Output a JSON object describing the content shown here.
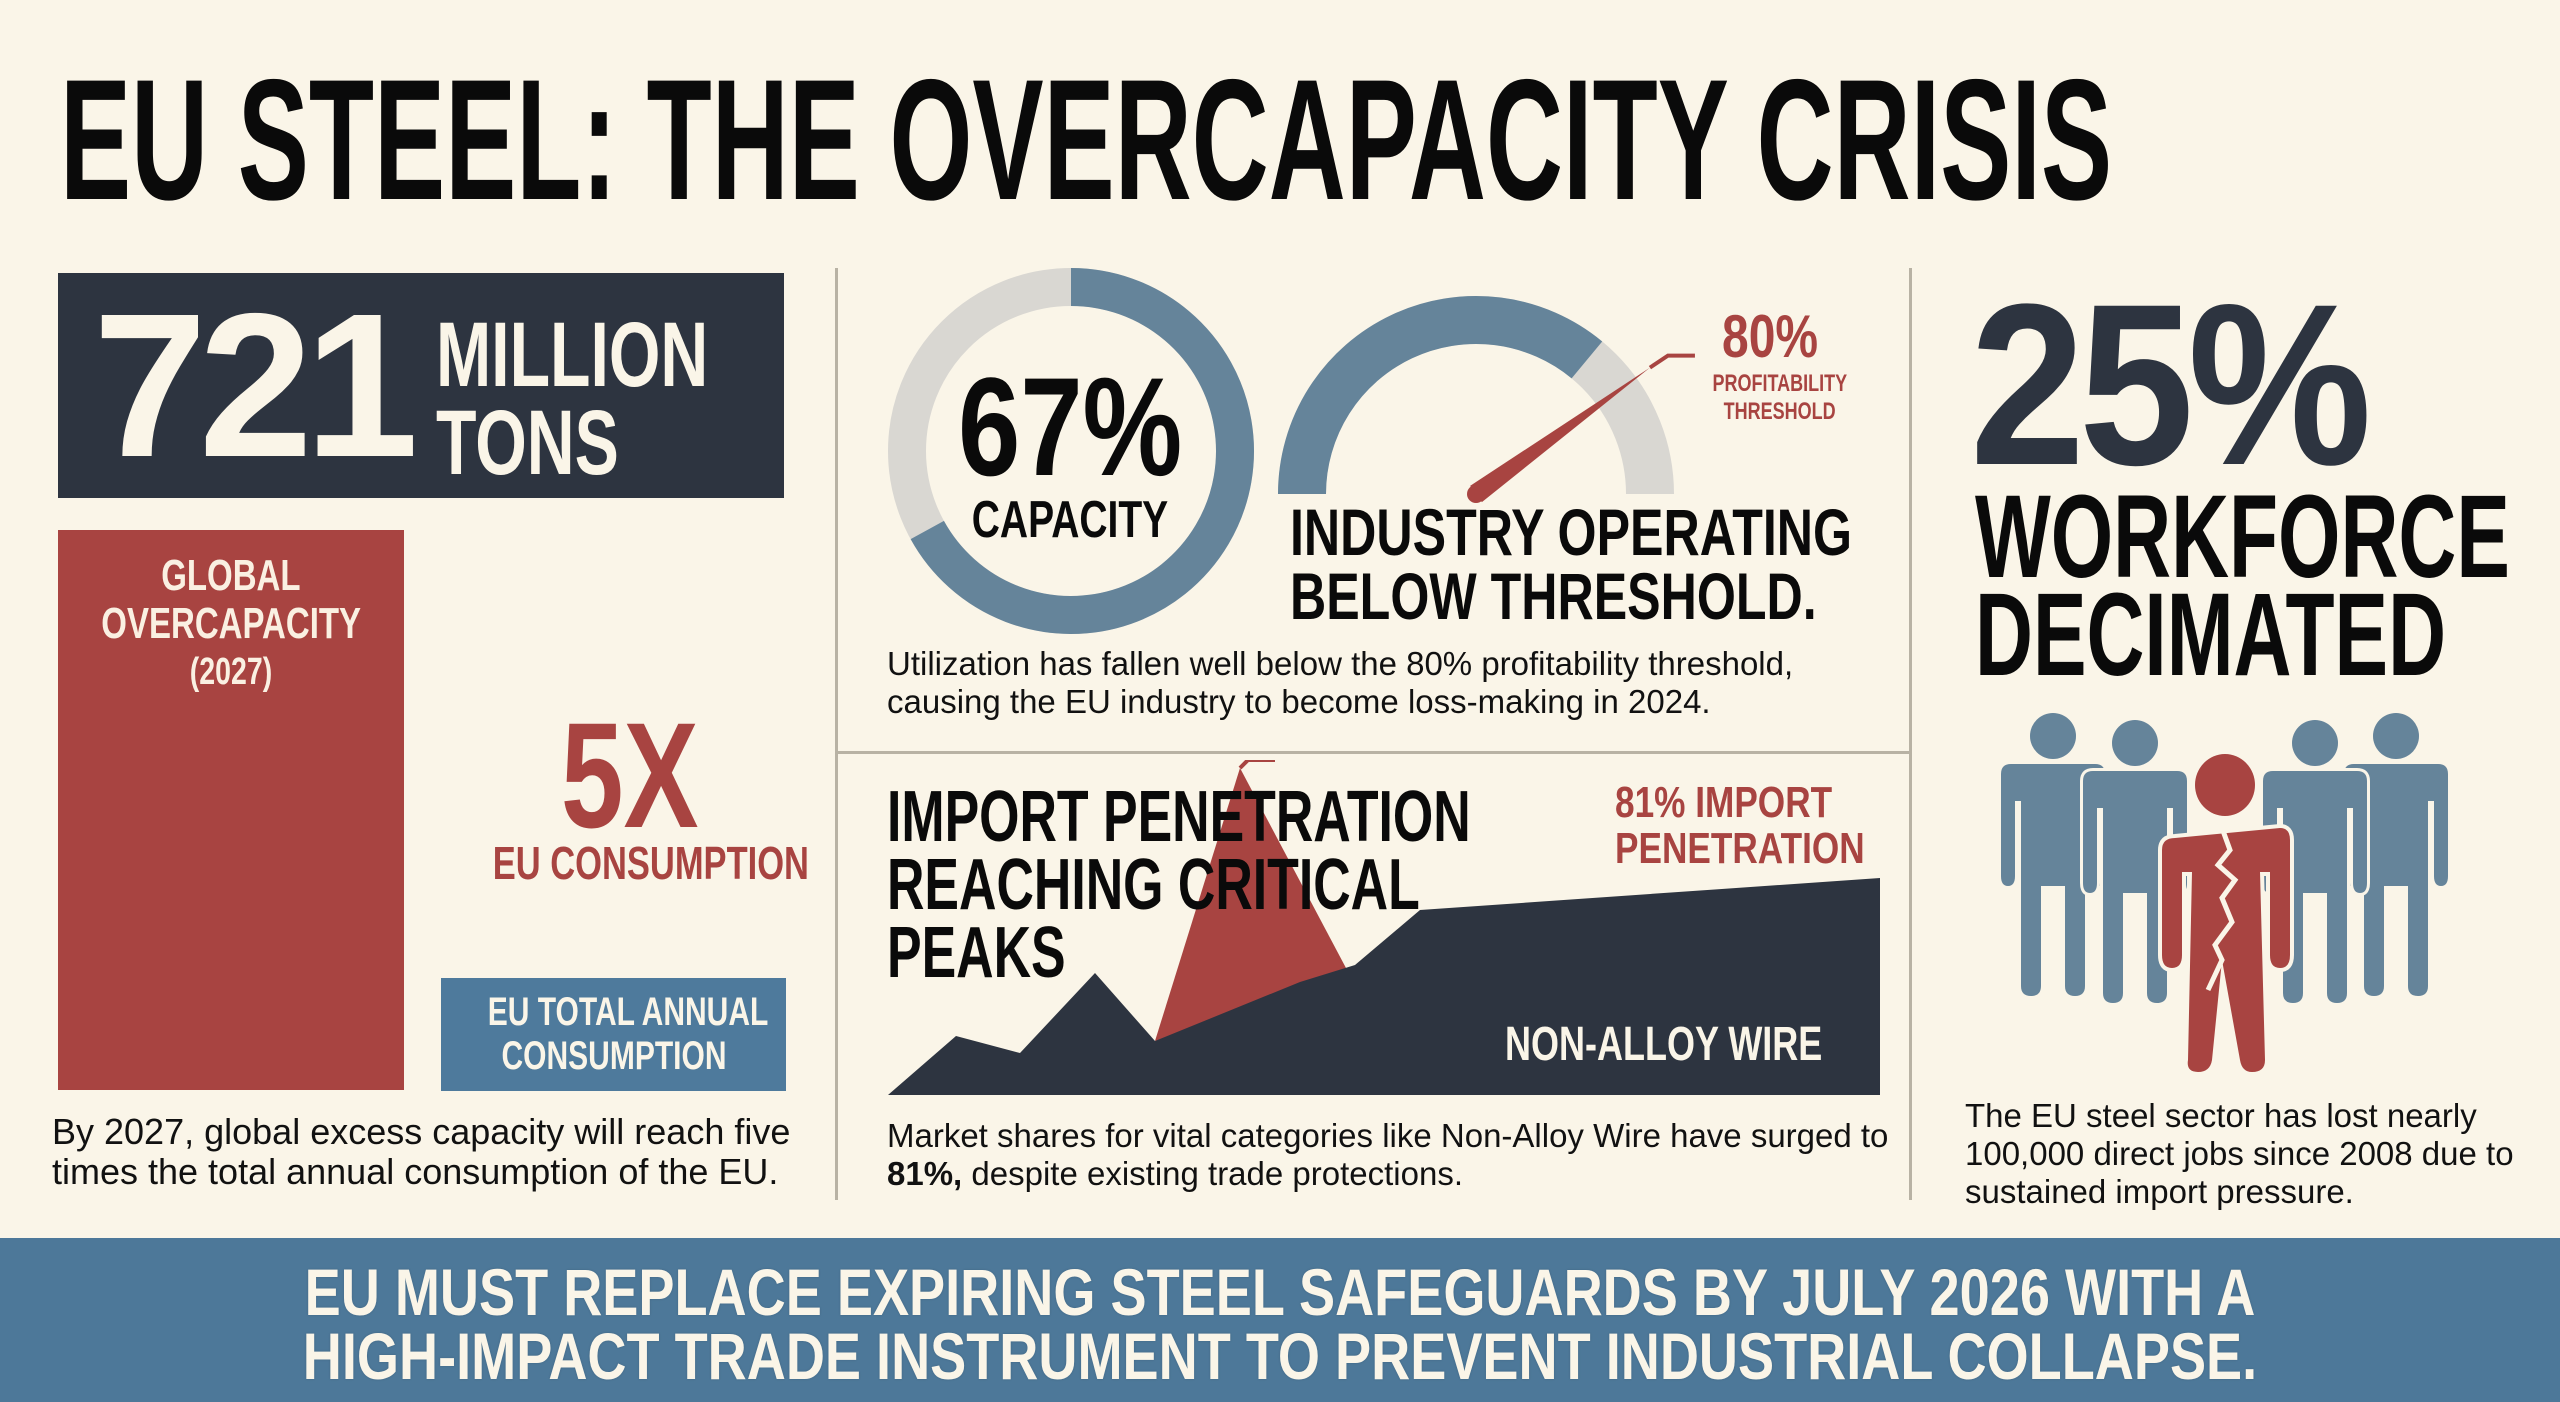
{
  "title": "EU STEEL: THE OVERCAPACITY CRISIS",
  "colors": {
    "background": "#faf5e8",
    "navy": "#2d3440",
    "red": "#a84441",
    "blue": "#4e7a9c",
    "steel_blue": "#65849a",
    "light_gray": "#d9d7d2"
  },
  "overcapacity": {
    "number": "721",
    "unit_line1": "MILLION",
    "unit_line2": "TONS",
    "bar_label_line1": "GLOBAL",
    "bar_label_line2": "OVERCAPACITY",
    "bar_label_year": "(2027)",
    "multiplier": "5X",
    "multiplier_label": "EU CONSUMPTION",
    "eu_box_line1": "EU TOTAL ANNUAL",
    "eu_box_line2": "CONSUMPTION",
    "ratio": 5,
    "caption": "By 2027, global excess capacity will reach five times the total annual consumption of the EU."
  },
  "utilization": {
    "value_text": "67%",
    "value": 67,
    "label": "CAPACITY",
    "threshold_text": "80%",
    "threshold": 80,
    "threshold_label_line1": "PROFITABILITY",
    "threshold_label_line2": "THRESHOLD",
    "heading_line1": "INDUSTRY OPERATING",
    "heading_line2": "BELOW THRESHOLD.",
    "caption": "Utilization has fallen well below the 80% profitability threshold, causing the EU industry to become loss-making in 2024."
  },
  "imports": {
    "heading_line1": "IMPORT PENETRATION",
    "heading_line2": "REACHING CRITICAL",
    "heading_line3": "PEAKS",
    "callout_line1": "81% IMPORT",
    "callout_line2": "PENETRATION",
    "series_label": "NON-ALLOY WIRE",
    "peak_value": 81,
    "caption_before": "Market shares for vital categories like Non-Alloy Wire have surged to ",
    "caption_bold": "81%,",
    "caption_after": " despite existing trade protections."
  },
  "workforce": {
    "value_text": "25%",
    "label_line1": "WORKFORCE",
    "label_line2": "DECIMATED",
    "icon": "people-group-with-broken-figure-icon",
    "caption": "The EU steel sector has lost nearly 100,000 direct jobs since 2008 due to sustained import pressure."
  },
  "banner": {
    "line1": "EU MUST REPLACE EXPIRING STEEL SAFEGUARDS BY  JULY 2026 WITH A",
    "line2": "HIGH-IMPACT TRADE INSTRUMENT TO PREVENT INDUSTRIAL COLLAPSE."
  }
}
